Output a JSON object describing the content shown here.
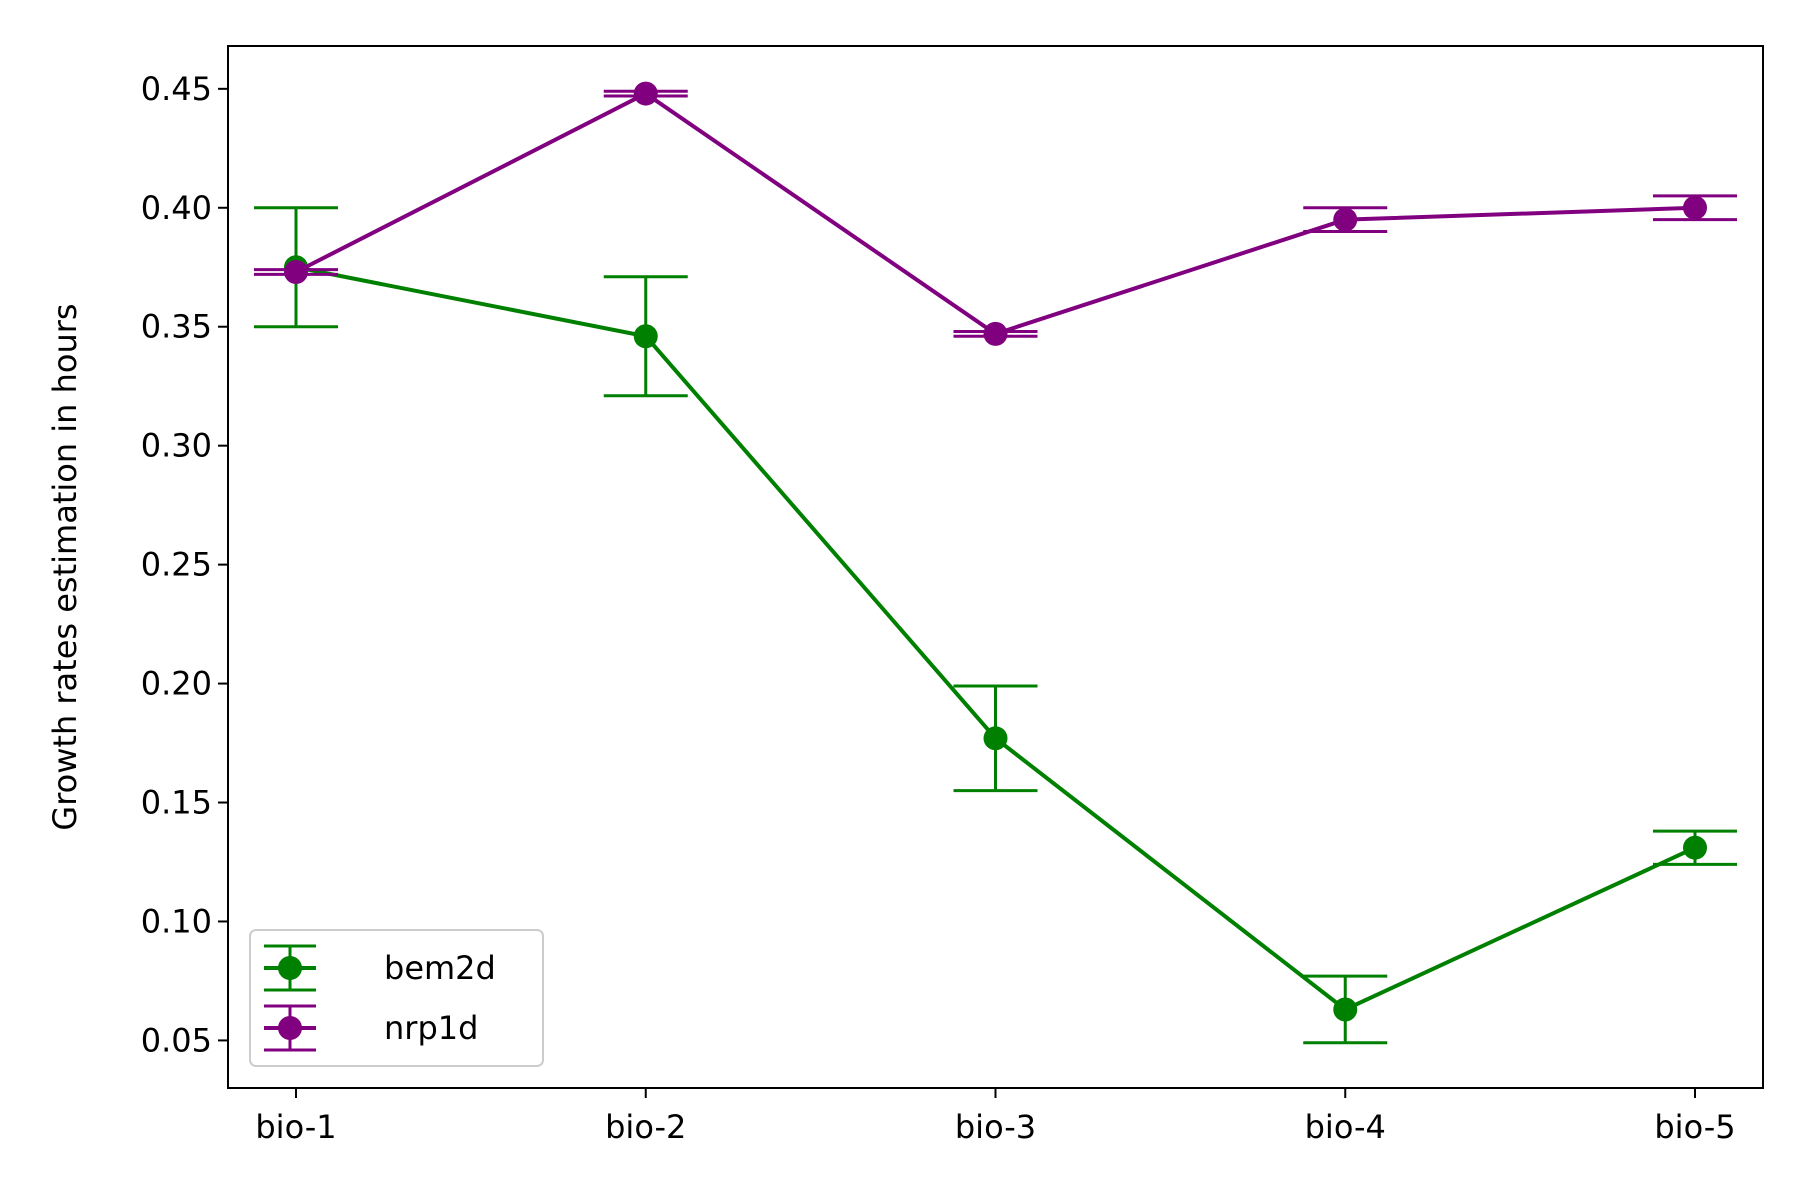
{
  "chart_data": {
    "type": "line",
    "title": "",
    "xlabel": "",
    "ylabel": "Growth rates estimation in hours",
    "categories": [
      "bio-1",
      "bio-2",
      "bio-3",
      "bio-4",
      "bio-5"
    ],
    "ylim": [
      0.03,
      0.468
    ],
    "yticks": [
      "0.05",
      "0.10",
      "0.15",
      "0.20",
      "0.25",
      "0.30",
      "0.35",
      "0.40",
      "0.45"
    ],
    "grid": false,
    "legend_position": "lower-left",
    "series": [
      {
        "name": "bem2d",
        "color": "#008000",
        "marker": "circle",
        "values": [
          0.375,
          0.346,
          0.177,
          0.063,
          0.131
        ],
        "errors": [
          0.025,
          0.025,
          0.022,
          0.014,
          0.007
        ]
      },
      {
        "name": "nrp1d",
        "color": "#800080",
        "marker": "circle",
        "values": [
          0.373,
          0.448,
          0.347,
          0.395,
          0.4
        ],
        "errors": [
          0.001,
          0.001,
          0.001,
          0.005,
          0.005
        ]
      }
    ]
  }
}
